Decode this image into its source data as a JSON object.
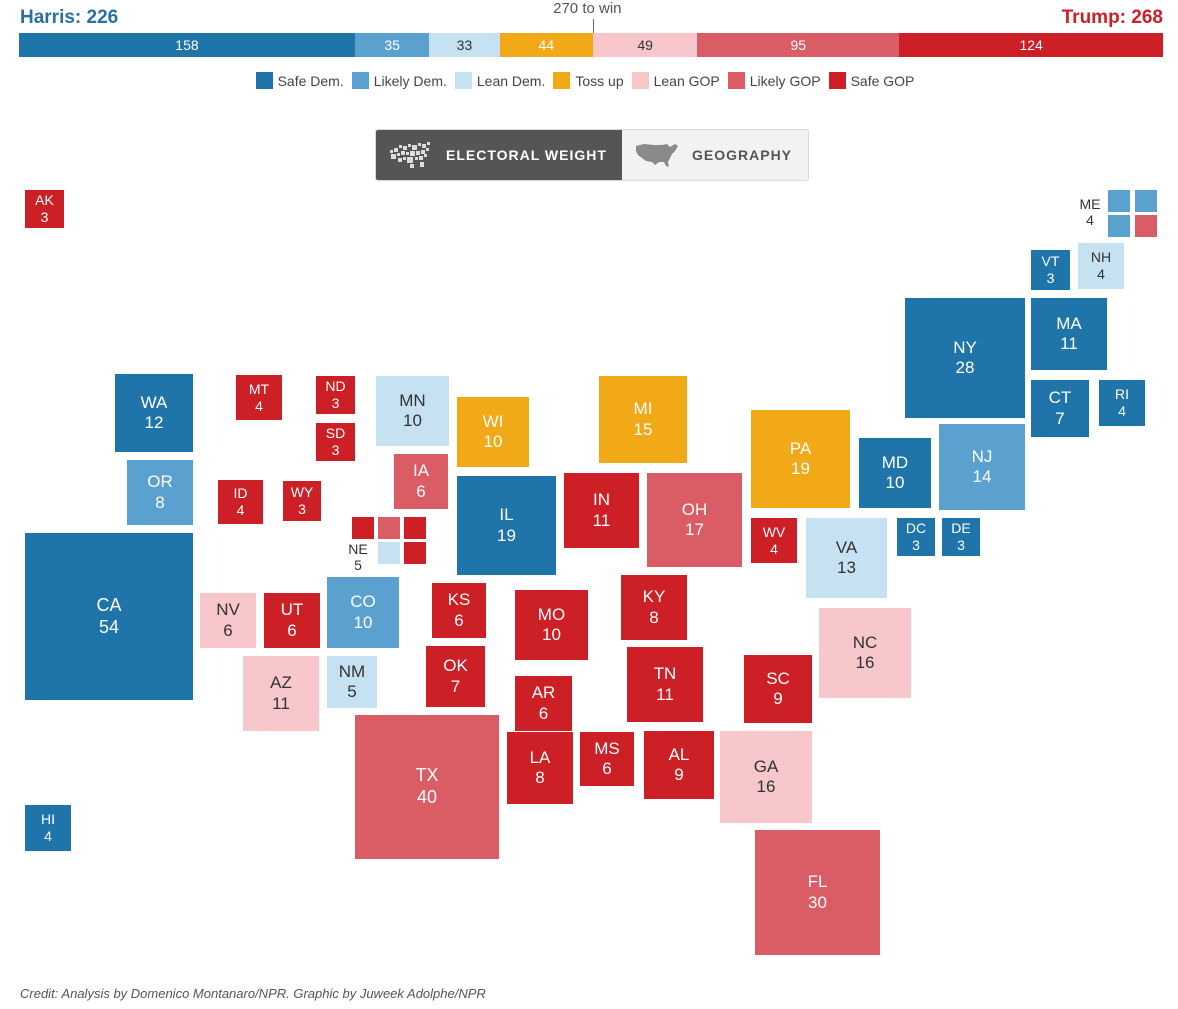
{
  "header": {
    "harris_label": "Harris: 226",
    "trump_label": "Trump: 268",
    "win_label": "270 to win"
  },
  "colors": {
    "safe_dem": "#1f74a9",
    "likely_dem": "#5ba1d0",
    "lean_dem": "#c6e1f1",
    "toss_up": "#f2a917",
    "lean_gop": "#f7c7cc",
    "likely_gop": "#da5c65",
    "safe_gop": "#cc1f26"
  },
  "rating_bar": [
    {
      "rating": "safe_dem",
      "value": 158
    },
    {
      "rating": "likely_dem",
      "value": 35
    },
    {
      "rating": "lean_dem",
      "value": 33
    },
    {
      "rating": "toss_up",
      "value": 44
    },
    {
      "rating": "lean_gop",
      "value": 49
    },
    {
      "rating": "likely_gop",
      "value": 95
    },
    {
      "rating": "safe_gop",
      "value": 124
    }
  ],
  "legend": [
    {
      "rating": "safe_dem",
      "label": "Safe Dem."
    },
    {
      "rating": "likely_dem",
      "label": "Likely Dem."
    },
    {
      "rating": "lean_dem",
      "label": "Lean Dem."
    },
    {
      "rating": "toss_up",
      "label": "Toss up"
    },
    {
      "rating": "lean_gop",
      "label": "Lean GOP"
    },
    {
      "rating": "likely_gop",
      "label": "Likely GOP"
    },
    {
      "rating": "safe_gop",
      "label": "Safe GOP"
    }
  ],
  "toggle": {
    "electoral_weight": "ELECTORAL WEIGHT",
    "geography": "GEOGRAPHY"
  },
  "states": [
    {
      "abbr": "AK",
      "ev": "3",
      "rating": "safe_gop"
    },
    {
      "abbr": "VT",
      "ev": "3",
      "rating": "safe_dem"
    },
    {
      "abbr": "NH",
      "ev": "4",
      "rating": "lean_dem"
    },
    {
      "abbr": "NY",
      "ev": "28",
      "rating": "safe_dem"
    },
    {
      "abbr": "MA",
      "ev": "11",
      "rating": "safe_dem"
    },
    {
      "abbr": "CT",
      "ev": "7",
      "rating": "safe_dem"
    },
    {
      "abbr": "RI",
      "ev": "4",
      "rating": "safe_dem"
    },
    {
      "abbr": "WA",
      "ev": "12",
      "rating": "safe_dem"
    },
    {
      "abbr": "MT",
      "ev": "4",
      "rating": "safe_gop"
    },
    {
      "abbr": "ND",
      "ev": "3",
      "rating": "safe_gop"
    },
    {
      "abbr": "SD",
      "ev": "3",
      "rating": "safe_gop"
    },
    {
      "abbr": "MN",
      "ev": "10",
      "rating": "lean_dem"
    },
    {
      "abbr": "WI",
      "ev": "10",
      "rating": "toss_up"
    },
    {
      "abbr": "MI",
      "ev": "15",
      "rating": "toss_up"
    },
    {
      "abbr": "PA",
      "ev": "19",
      "rating": "toss_up"
    },
    {
      "abbr": "MD",
      "ev": "10",
      "rating": "safe_dem"
    },
    {
      "abbr": "NJ",
      "ev": "14",
      "rating": "likely_dem"
    },
    {
      "abbr": "OR",
      "ev": "8",
      "rating": "likely_dem"
    },
    {
      "abbr": "ID",
      "ev": "4",
      "rating": "safe_gop"
    },
    {
      "abbr": "WY",
      "ev": "3",
      "rating": "safe_gop"
    },
    {
      "abbr": "IA",
      "ev": "6",
      "rating": "likely_gop"
    },
    {
      "abbr": "IL",
      "ev": "19",
      "rating": "safe_dem"
    },
    {
      "abbr": "IN",
      "ev": "11",
      "rating": "safe_gop"
    },
    {
      "abbr": "OH",
      "ev": "17",
      "rating": "likely_gop"
    },
    {
      "abbr": "WV",
      "ev": "4",
      "rating": "safe_gop"
    },
    {
      "abbr": "VA",
      "ev": "13",
      "rating": "lean_dem"
    },
    {
      "abbr": "DC",
      "ev": "3",
      "rating": "safe_dem"
    },
    {
      "abbr": "DE",
      "ev": "3",
      "rating": "safe_dem"
    },
    {
      "abbr": "CA",
      "ev": "54",
      "rating": "safe_dem"
    },
    {
      "abbr": "NV",
      "ev": "6",
      "rating": "lean_gop"
    },
    {
      "abbr": "UT",
      "ev": "6",
      "rating": "safe_gop"
    },
    {
      "abbr": "CO",
      "ev": "10",
      "rating": "likely_dem"
    },
    {
      "abbr": "KS",
      "ev": "6",
      "rating": "safe_gop"
    },
    {
      "abbr": "MO",
      "ev": "10",
      "rating": "safe_gop"
    },
    {
      "abbr": "KY",
      "ev": "8",
      "rating": "safe_gop"
    },
    {
      "abbr": "NC",
      "ev": "16",
      "rating": "lean_gop"
    },
    {
      "abbr": "AZ",
      "ev": "11",
      "rating": "lean_gop"
    },
    {
      "abbr": "NM",
      "ev": "5",
      "rating": "lean_dem"
    },
    {
      "abbr": "OK",
      "ev": "7",
      "rating": "safe_gop"
    },
    {
      "abbr": "TN",
      "ev": "11",
      "rating": "safe_gop"
    },
    {
      "abbr": "SC",
      "ev": "9",
      "rating": "safe_gop"
    },
    {
      "abbr": "AR",
      "ev": "6",
      "rating": "safe_gop"
    },
    {
      "abbr": "TX",
      "ev": "40",
      "rating": "likely_gop"
    },
    {
      "abbr": "LA",
      "ev": "8",
      "rating": "safe_gop"
    },
    {
      "abbr": "MS",
      "ev": "6",
      "rating": "safe_gop"
    },
    {
      "abbr": "AL",
      "ev": "9",
      "rating": "safe_gop"
    },
    {
      "abbr": "GA",
      "ev": "16",
      "rating": "lean_gop"
    },
    {
      "abbr": "HI",
      "ev": "4",
      "rating": "safe_dem"
    },
    {
      "abbr": "FL",
      "ev": "30",
      "rating": "likely_gop"
    }
  ],
  "split_states": [
    {
      "abbr": "ME",
      "ev": "4",
      "cells": [
        "likely_dem",
        "likely_dem",
        "likely_dem",
        "likely_gop"
      ]
    },
    {
      "abbr": "NE",
      "ev": "5",
      "cells": [
        "safe_gop",
        "likely_gop",
        "safe_gop",
        "lean_dem",
        "safe_gop"
      ]
    }
  ],
  "credit": "Credit: Analysis by Domenico Montanaro/NPR. Graphic by Juweek Adolphe/NPR"
}
